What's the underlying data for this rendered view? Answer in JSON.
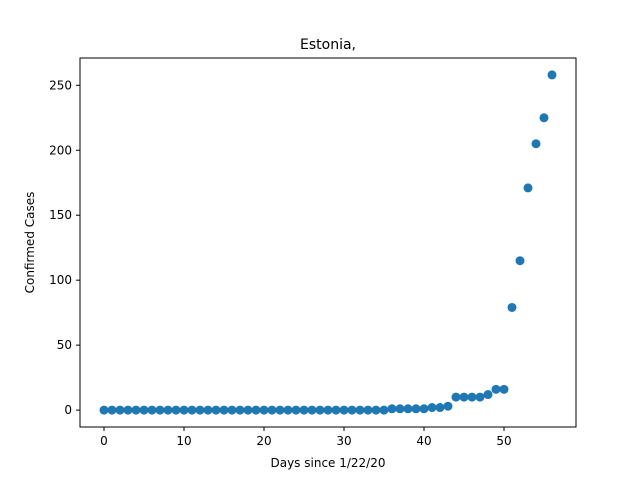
{
  "chart_data": {
    "type": "scatter",
    "title": "Estonia,",
    "xlabel": "Days since 1/22/20",
    "ylabel": "Confirmed Cases",
    "xlim": [
      -3,
      59
    ],
    "ylim": [
      -13,
      271
    ],
    "xticks": [
      0,
      10,
      20,
      30,
      40,
      50
    ],
    "yticks": [
      0,
      50,
      100,
      150,
      200,
      250
    ],
    "grid": false,
    "marker_color": "#1f77b4",
    "series": [
      {
        "x": [
          0,
          1,
          2,
          3,
          4,
          5,
          6,
          7,
          8,
          9,
          10,
          11,
          12,
          13,
          14,
          15,
          16,
          17,
          18,
          19,
          20,
          21,
          22,
          23,
          24,
          25,
          26,
          27,
          28,
          29,
          30,
          31,
          32,
          33,
          34,
          35,
          36,
          37,
          38,
          39,
          40,
          41,
          42,
          43,
          44,
          45,
          46,
          47,
          48,
          49,
          50,
          51,
          52,
          53,
          54,
          55,
          56
        ],
        "y": [
          0,
          0,
          0,
          0,
          0,
          0,
          0,
          0,
          0,
          0,
          0,
          0,
          0,
          0,
          0,
          0,
          0,
          0,
          0,
          0,
          0,
          0,
          0,
          0,
          0,
          0,
          0,
          0,
          0,
          0,
          0,
          0,
          0,
          0,
          0,
          0,
          1,
          1,
          1,
          1,
          1,
          2,
          2,
          3,
          10,
          10,
          10,
          10,
          12,
          16,
          16,
          79,
          115,
          171,
          205,
          225,
          258
        ]
      }
    ]
  }
}
